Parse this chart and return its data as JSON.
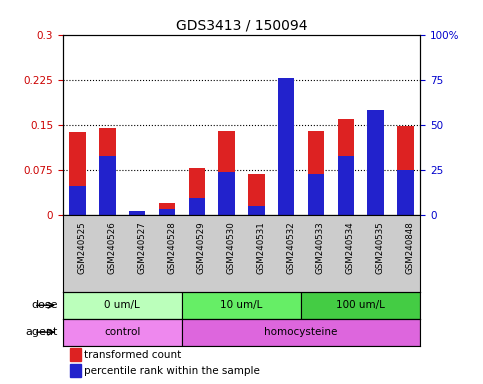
{
  "title": "GDS3413 / 150094",
  "samples": [
    "GSM240525",
    "GSM240526",
    "GSM240527",
    "GSM240528",
    "GSM240529",
    "GSM240530",
    "GSM240531",
    "GSM240532",
    "GSM240533",
    "GSM240534",
    "GSM240535",
    "GSM240848"
  ],
  "transformed_count": [
    0.138,
    0.145,
    0.003,
    0.02,
    0.078,
    0.14,
    0.068,
    0.222,
    0.14,
    0.16,
    0.175,
    0.148
  ],
  "percentile_rank_scaled": [
    0.048,
    0.098,
    0.007,
    0.01,
    0.028,
    0.072,
    0.015,
    0.228,
    0.068,
    0.098,
    0.175,
    0.075
  ],
  "ylim_left": [
    0,
    0.3
  ],
  "ylim_right": [
    0,
    100
  ],
  "yticks_left": [
    0,
    0.075,
    0.15,
    0.225,
    0.3
  ],
  "yticks_right": [
    0,
    25,
    50,
    75,
    100
  ],
  "ytick_labels_left": [
    "0",
    "0.075",
    "0.15",
    "0.225",
    "0.3"
  ],
  "ytick_labels_right": [
    "0",
    "25",
    "50",
    "75",
    "100%"
  ],
  "hlines": [
    0.075,
    0.15,
    0.225
  ],
  "bar_color": "#dd2222",
  "percentile_color": "#2222cc",
  "bar_width": 0.55,
  "dose_groups": [
    {
      "label": "0 um/L",
      "start": 0,
      "end": 3,
      "color": "#bbffbb"
    },
    {
      "label": "10 um/L",
      "start": 4,
      "end": 7,
      "color": "#66ee66"
    },
    {
      "label": "100 um/L",
      "start": 8,
      "end": 11,
      "color": "#44cc44"
    }
  ],
  "agent_groups": [
    {
      "label": "control",
      "start": 0,
      "end": 3,
      "color": "#ee88ee"
    },
    {
      "label": "homocysteine",
      "start": 4,
      "end": 11,
      "color": "#dd66dd"
    }
  ],
  "dose_label": "dose",
  "agent_label": "agent",
  "legend_red": "transformed count",
  "legend_blue": "percentile rank within the sample",
  "axis_label_color_left": "#cc0000",
  "axis_label_color_right": "#0000cc",
  "xticklabel_bg": "#cccccc",
  "plot_bg": "#ffffff"
}
